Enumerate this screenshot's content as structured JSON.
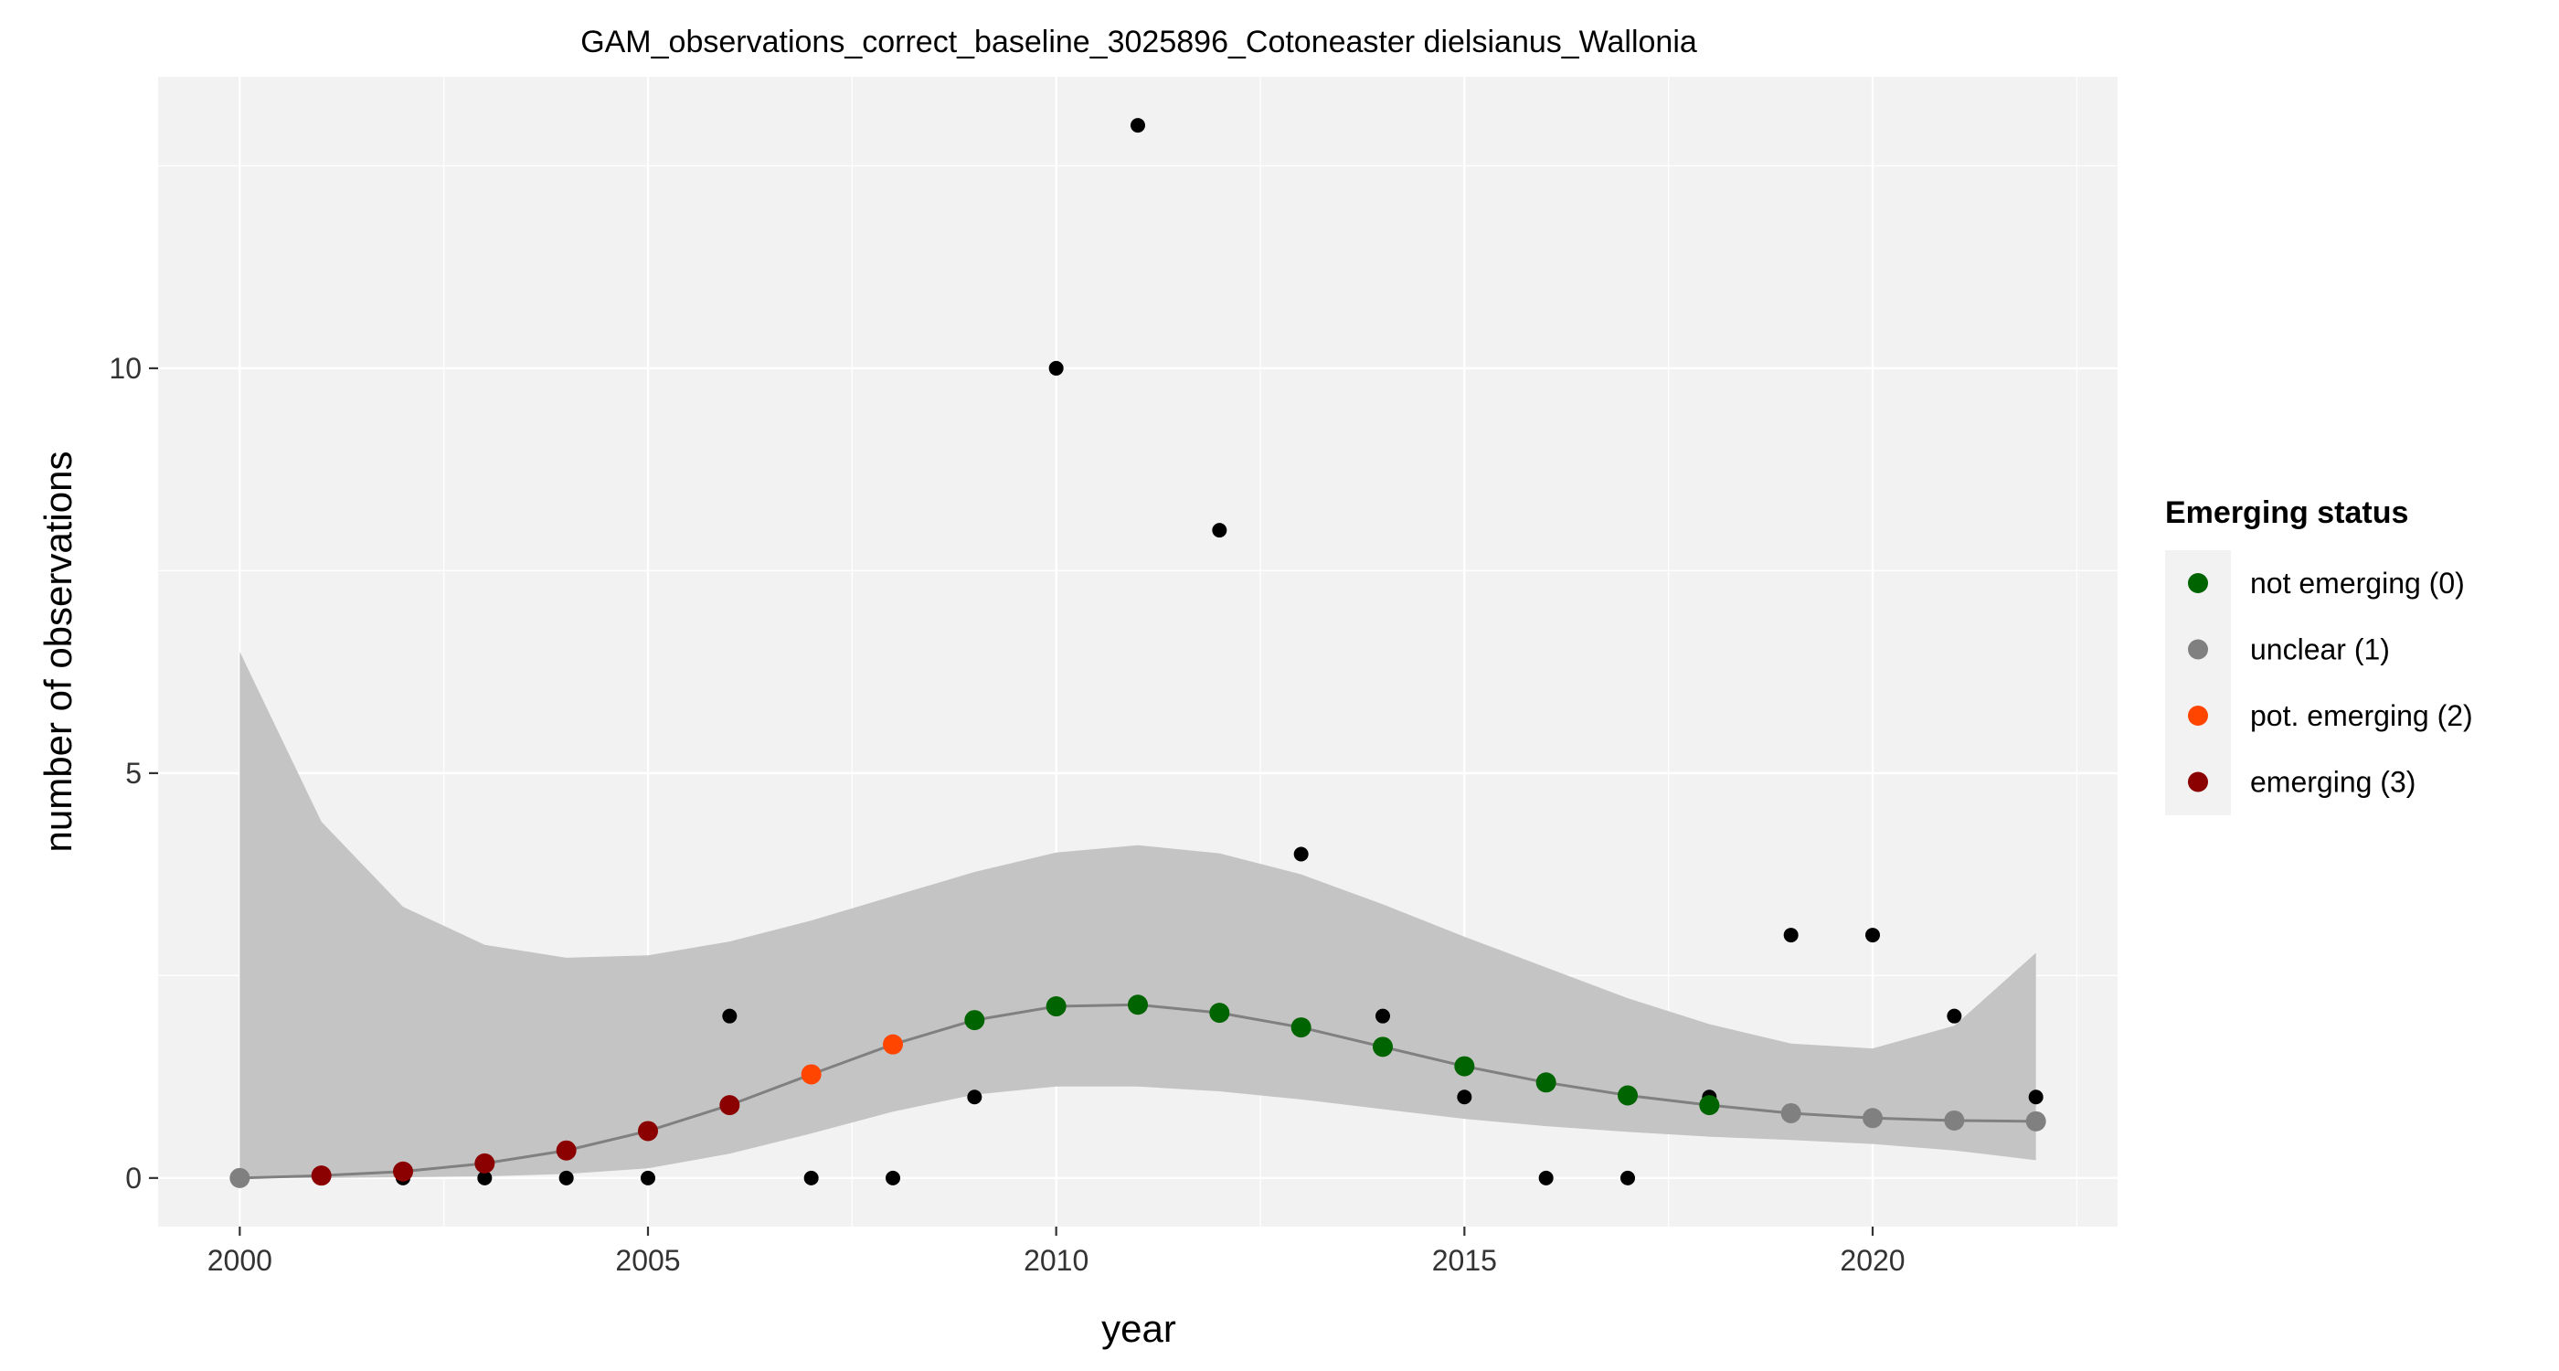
{
  "chart_data": {
    "type": "scatter",
    "title": "GAM_observations_correct_baseline_3025896_Cotoneaster dielsianus_Wallonia",
    "xlabel": "year",
    "ylabel": "number of observations",
    "xlim": [
      1999,
      2023
    ],
    "ylim": [
      -0.6,
      13.6
    ],
    "grid": true,
    "x_ticks": [
      2000,
      2005,
      2010,
      2015,
      2020
    ],
    "y_ticks": [
      0,
      5,
      10
    ],
    "x_tick_labels": [
      "2000",
      "2005",
      "2010",
      "2015",
      "2020"
    ],
    "y_tick_labels": [
      "0",
      "5",
      "10"
    ],
    "observations": {
      "x": [
        2001,
        2002,
        2003,
        2004,
        2005,
        2006,
        2007,
        2008,
        2009,
        2010,
        2011,
        2012,
        2013,
        2014,
        2015,
        2016,
        2017,
        2018,
        2019,
        2020,
        2021,
        2022
      ],
      "y": [
        0,
        0,
        0,
        0,
        0,
        2,
        0,
        0,
        1,
        10,
        13,
        8,
        4,
        2,
        1,
        0,
        0,
        1,
        3,
        3,
        2,
        1
      ]
    },
    "gam_fit": {
      "x": [
        2000,
        2001,
        2002,
        2003,
        2004,
        2005,
        2006,
        2007,
        2008,
        2009,
        2010,
        2011,
        2012,
        2013,
        2014,
        2015,
        2016,
        2017,
        2018,
        2019,
        2020,
        2021,
        2022
      ],
      "fit": [
        0.0,
        0.03,
        0.08,
        0.18,
        0.34,
        0.58,
        0.9,
        1.28,
        1.65,
        1.95,
        2.12,
        2.14,
        2.04,
        1.86,
        1.62,
        1.38,
        1.18,
        1.02,
        0.9,
        0.8,
        0.74,
        0.71,
        0.7
      ],
      "lower": [
        0.0,
        0.0,
        0.01,
        0.02,
        0.05,
        0.12,
        0.3,
        0.55,
        0.82,
        1.03,
        1.13,
        1.13,
        1.07,
        0.97,
        0.85,
        0.73,
        0.64,
        0.57,
        0.51,
        0.47,
        0.42,
        0.34,
        0.22
      ],
      "upper": [
        6.5,
        4.4,
        3.35,
        2.88,
        2.72,
        2.75,
        2.92,
        3.18,
        3.48,
        3.78,
        4.02,
        4.11,
        4.01,
        3.75,
        3.38,
        2.98,
        2.6,
        2.22,
        1.9,
        1.66,
        1.6,
        1.88,
        2.78
      ],
      "status": [
        1,
        3,
        3,
        3,
        3,
        3,
        3,
        2,
        2,
        0,
        0,
        0,
        0,
        0,
        0,
        0,
        0,
        0,
        0,
        1,
        1,
        1,
        1
      ]
    },
    "legend": {
      "title": "Emerging status",
      "placement": "right",
      "entries": [
        {
          "label": "not emerging (0)",
          "color": "#006400"
        },
        {
          "label": "unclear (1)",
          "color": "#808080"
        },
        {
          "label": "pot. emerging (2)",
          "color": "#FF4500"
        },
        {
          "label": "emerging (3)",
          "color": "#8B0000"
        }
      ]
    },
    "colors": {
      "panel_background": "#F2F2F2",
      "grid": "#FFFFFF",
      "ribbon": "#C4C4C4",
      "fit_line": "#808080",
      "observation_point": "#000000"
    }
  }
}
